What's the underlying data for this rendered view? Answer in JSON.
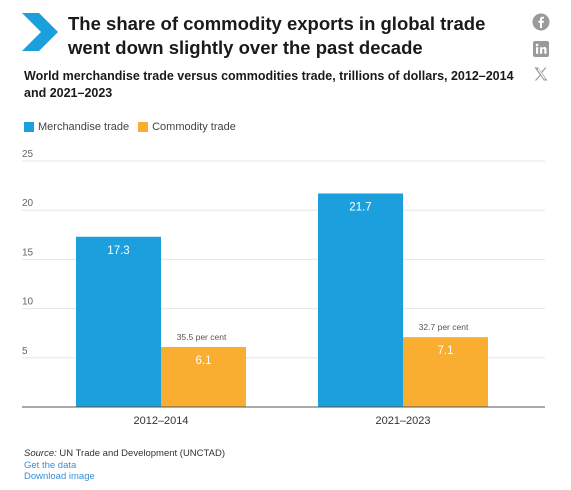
{
  "header": {
    "title": "The share of commodity exports in global trade went down slightly over the past decade",
    "subtitle": "World merchandise trade versus commodities trade, trillions of dollars, 2012–2014 and 2021–2023"
  },
  "share": {
    "icons": [
      "facebook-icon",
      "linkedin-icon",
      "x-icon"
    ]
  },
  "colors": {
    "merchandise": "#1ba0dd",
    "commodity": "#f9ae31",
    "chevron": "#1ba0dd",
    "link": "#3b8ed4"
  },
  "chart_data": {
    "type": "bar",
    "categories": [
      "2012–2014",
      "2021–2023"
    ],
    "series": [
      {
        "name": "Merchandise trade",
        "values": [
          17.3,
          21.7
        ],
        "labels": [
          "17.3",
          "21.7"
        ]
      },
      {
        "name": "Commodity trade",
        "values": [
          6.1,
          7.1
        ],
        "labels": [
          "6.1",
          "7.1"
        ],
        "annotations": [
          "35.5 per cent",
          "32.7 per cent"
        ]
      }
    ],
    "yticks": [
      5,
      10,
      15,
      20,
      25
    ],
    "ylim": [
      0,
      25
    ],
    "grid": true,
    "legend": "top-left"
  },
  "footer": {
    "source_label": "Source:",
    "source_text": " UN Trade and Development (UNCTAD)",
    "get_data": "Get the data",
    "download": "Download image"
  }
}
